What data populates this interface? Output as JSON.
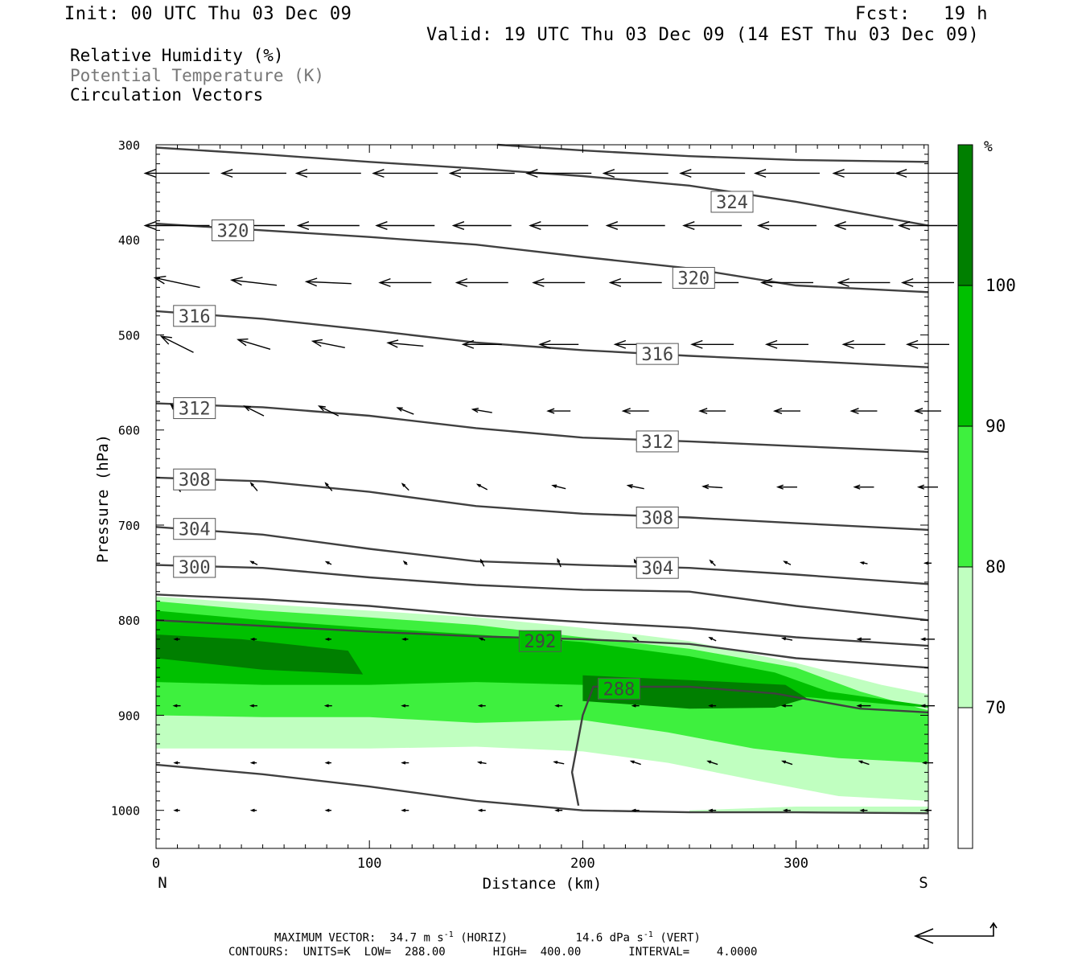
{
  "header": {
    "init": "Init: 00 UTC Thu 03 Dec 09",
    "fcst": "Fcst:   19 h",
    "valid": "Valid: 19 UTC Thu 03 Dec 09 (14 EST Thu 03 Dec 09)"
  },
  "fields": {
    "rh": "Relative Humidity (%)",
    "theta": "Potential Temperature (K)",
    "vectors": "Circulation Vectors"
  },
  "footer": {
    "max_vector_label": "MAXIMUM VECTOR:",
    "horiz_value": "34.7 m s",
    "horiz_exp": "-1",
    "horiz_tag": "(HORIZ)",
    "vert_value": "14.6 dPa s",
    "vert_exp": "-1",
    "vert_tag": "(VERT)",
    "contours": "CONTOURS:  UNITS=K  LOW=  288.00       HIGH=  400.00       INTERVAL=    4.0000"
  },
  "colors": {
    "rh_70_80": "#c0ffc0",
    "rh_80_90": "#3ef03e",
    "rh_90_100": "#00c000",
    "rh_100": "#007f00",
    "contour": "#404040",
    "vector": "#000000"
  },
  "chart_data": {
    "type": "cross-section",
    "xlabel": "Distance (km)",
    "ylabel": "Pressure (hPa)",
    "xlim": [
      0,
      362
    ],
    "ylim": [
      1040,
      300
    ],
    "x_ticks": [
      0,
      100,
      200,
      300
    ],
    "y_ticks": [
      300,
      400,
      500,
      600,
      700,
      800,
      900,
      1000
    ],
    "x_end_labels": {
      "left": "N",
      "right": "S"
    },
    "colorbar": {
      "unit": "%",
      "ticks": [
        70,
        80,
        90,
        100
      ],
      "levels": [
        60,
        70,
        80,
        90,
        100,
        110
      ]
    },
    "rh_regions": [
      {
        "level": 70,
        "upper": [
          [
            0,
            775
          ],
          [
            50,
            783
          ],
          [
            100,
            790
          ],
          [
            150,
            797
          ],
          [
            200,
            808
          ],
          [
            250,
            822
          ],
          [
            300,
            845
          ],
          [
            340,
            868
          ],
          [
            362,
            878
          ]
        ],
        "lower": [
          [
            362,
            990
          ],
          [
            320,
            985
          ],
          [
            280,
            968
          ],
          [
            240,
            950
          ],
          [
            200,
            938
          ],
          [
            150,
            933
          ],
          [
            100,
            935
          ],
          [
            50,
            935
          ],
          [
            0,
            935
          ]
        ]
      },
      {
        "level": 80,
        "upper": [
          [
            0,
            780
          ],
          [
            50,
            790
          ],
          [
            100,
            797
          ],
          [
            150,
            805
          ],
          [
            200,
            818
          ],
          [
            250,
            830
          ],
          [
            300,
            850
          ],
          [
            330,
            875
          ],
          [
            362,
            895
          ]
        ],
        "lower": [
          [
            362,
            950
          ],
          [
            320,
            945
          ],
          [
            280,
            935
          ],
          [
            240,
            918
          ],
          [
            200,
            905
          ],
          [
            150,
            908
          ],
          [
            100,
            902
          ],
          [
            50,
            902
          ],
          [
            0,
            900
          ]
        ]
      },
      {
        "level": 90,
        "upper": [
          [
            0,
            790
          ],
          [
            50,
            800
          ],
          [
            100,
            808
          ],
          [
            150,
            815
          ],
          [
            200,
            823
          ],
          [
            250,
            838
          ],
          [
            290,
            855
          ],
          [
            315,
            875
          ],
          [
            362,
            890
          ]
        ],
        "lower": [
          [
            362,
            892
          ],
          [
            300,
            880
          ],
          [
            250,
            878
          ],
          [
            200,
            868
          ],
          [
            150,
            865
          ],
          [
            100,
            868
          ],
          [
            50,
            868
          ],
          [
            0,
            865
          ]
        ]
      },
      {
        "level": 100,
        "upper": [
          [
            0,
            815
          ],
          [
            40,
            820
          ],
          [
            90,
            832
          ],
          [
            97,
            857
          ]
        ],
        "lower": [
          [
            97,
            857
          ],
          [
            50,
            852
          ],
          [
            0,
            840
          ]
        ]
      },
      {
        "level": 100,
        "upper": [
          [
            200,
            858
          ],
          [
            250,
            863
          ],
          [
            295,
            868
          ],
          [
            305,
            882
          ],
          [
            290,
            892
          ]
        ],
        "lower": [
          [
            290,
            892
          ],
          [
            250,
            893
          ],
          [
            200,
            885
          ]
        ]
      },
      {
        "level": 70,
        "upper": [
          [
            250,
            1000
          ],
          [
            300,
            996
          ],
          [
            362,
            996
          ]
        ],
        "lower": [
          [
            362,
            1002
          ],
          [
            300,
            1003
          ],
          [
            250,
            1002
          ]
        ]
      }
    ],
    "theta_contours": [
      {
        "value": 324,
        "points": [
          [
            0,
            303
          ],
          [
            50,
            310
          ],
          [
            100,
            318
          ],
          [
            150,
            325
          ],
          [
            200,
            333
          ],
          [
            250,
            343
          ],
          [
            300,
            360
          ],
          [
            362,
            385
          ]
        ]
      },
      {
        "value": 328,
        "points": [
          [
            160,
            300
          ],
          [
            200,
            306
          ],
          [
            250,
            312
          ],
          [
            300,
            316
          ],
          [
            362,
            318
          ]
        ]
      },
      {
        "value": 320,
        "points": [
          [
            0,
            383
          ],
          [
            50,
            390
          ],
          [
            100,
            397
          ],
          [
            150,
            405
          ],
          [
            200,
            418
          ],
          [
            250,
            430
          ],
          [
            300,
            448
          ],
          [
            362,
            455
          ]
        ]
      },
      {
        "value": 316,
        "points": [
          [
            0,
            475
          ],
          [
            50,
            483
          ],
          [
            100,
            495
          ],
          [
            150,
            508
          ],
          [
            200,
            516
          ],
          [
            250,
            522
          ],
          [
            300,
            527
          ],
          [
            362,
            534
          ]
        ]
      },
      {
        "value": 312,
        "points": [
          [
            0,
            572
          ],
          [
            50,
            576
          ],
          [
            100,
            585
          ],
          [
            150,
            598
          ],
          [
            200,
            608
          ],
          [
            250,
            612
          ],
          [
            300,
            617
          ],
          [
            362,
            623
          ]
        ]
      },
      {
        "value": 308,
        "points": [
          [
            0,
            650
          ],
          [
            50,
            654
          ],
          [
            100,
            665
          ],
          [
            150,
            680
          ],
          [
            200,
            688
          ],
          [
            250,
            692
          ],
          [
            300,
            698
          ],
          [
            362,
            705
          ]
        ]
      },
      {
        "value": 304,
        "points": [
          [
            0,
            702
          ],
          [
            50,
            710
          ],
          [
            100,
            725
          ],
          [
            150,
            738
          ],
          [
            200,
            742
          ],
          [
            250,
            745
          ],
          [
            300,
            752
          ],
          [
            362,
            762
          ]
        ]
      },
      {
        "value": 300,
        "points": [
          [
            0,
            742
          ],
          [
            50,
            745
          ],
          [
            100,
            755
          ],
          [
            150,
            763
          ],
          [
            200,
            768
          ],
          [
            250,
            770
          ],
          [
            300,
            785
          ],
          [
            362,
            800
          ]
        ]
      },
      {
        "value": 296,
        "points": [
          [
            0,
            773
          ],
          [
            50,
            778
          ],
          [
            100,
            785
          ],
          [
            150,
            795
          ],
          [
            200,
            802
          ],
          [
            250,
            808
          ],
          [
            300,
            818
          ],
          [
            362,
            827
          ]
        ]
      },
      {
        "value": 292,
        "points": [
          [
            0,
            800
          ],
          [
            50,
            806
          ],
          [
            100,
            812
          ],
          [
            150,
            817
          ],
          [
            200,
            820
          ],
          [
            250,
            825
          ],
          [
            300,
            840
          ],
          [
            362,
            850
          ]
        ]
      },
      {
        "value": 288,
        "points": [
          [
            198,
            995
          ],
          [
            195,
            960
          ],
          [
            200,
            900
          ],
          [
            205,
            870
          ],
          [
            250,
            870
          ],
          [
            290,
            877
          ],
          [
            330,
            893
          ],
          [
            362,
            897
          ]
        ]
      },
      {
        "value": 284,
        "points": [
          [
            0,
            952
          ],
          [
            50,
            962
          ],
          [
            100,
            975
          ],
          [
            150,
            990
          ],
          [
            200,
            1000
          ],
          [
            250,
            1002
          ],
          [
            300,
            1002
          ],
          [
            362,
            1003
          ]
        ]
      }
    ],
    "theta_labels": [
      {
        "text": "324",
        "x": 270,
        "p": 360
      },
      {
        "text": "320",
        "x": 36,
        "p": 390
      },
      {
        "text": "320",
        "x": 252,
        "p": 440
      },
      {
        "text": "316",
        "x": 18,
        "p": 480
      },
      {
        "text": "316",
        "x": 235,
        "p": 520
      },
      {
        "text": "312",
        "x": 18,
        "p": 577
      },
      {
        "text": "312",
        "x": 235,
        "p": 612
      },
      {
        "text": "308",
        "x": 18,
        "p": 652
      },
      {
        "text": "308",
        "x": 235,
        "p": 692
      },
      {
        "text": "304",
        "x": 18,
        "p": 704
      },
      {
        "text": "304",
        "x": 235,
        "p": 745
      },
      {
        "text": "300",
        "x": 18,
        "p": 744
      },
      {
        "text": "292",
        "x": 180,
        "p": 822
      },
      {
        "text": "288",
        "x": 217,
        "p": 872
      }
    ],
    "vectors": {
      "x": [
        10,
        46,
        81,
        117,
        153,
        189,
        225,
        261,
        296,
        332,
        362
      ],
      "p": [
        330,
        385,
        445,
        510,
        580,
        660,
        740,
        820,
        890,
        950,
        1000
      ],
      "u": [
        [
          -1.0,
          -1.0,
          -1.0,
          -1.0,
          -1.0,
          -1.0,
          -1.0,
          -1.0,
          -1.0,
          -0.95,
          -1.0
        ],
        [
          -1.0,
          -0.95,
          -0.95,
          -0.9,
          -0.9,
          -0.9,
          -0.9,
          -0.9,
          -0.9,
          -0.9,
          -0.9
        ],
        [
          -0.7,
          -0.7,
          -0.7,
          -0.8,
          -0.8,
          -0.8,
          -0.8,
          -0.8,
          -0.8,
          -0.8,
          -0.8
        ],
        [
          -0.5,
          -0.5,
          -0.5,
          -0.55,
          -0.6,
          -0.6,
          -0.65,
          -0.65,
          -0.65,
          -0.65,
          -0.65
        ],
        [
          -0.2,
          -0.3,
          -0.3,
          -0.25,
          -0.3,
          -0.35,
          -0.4,
          -0.4,
          -0.4,
          -0.4,
          -0.4
        ],
        [
          -0.1,
          -0.1,
          -0.1,
          -0.1,
          -0.15,
          -0.2,
          -0.25,
          -0.3,
          -0.3,
          -0.3,
          -0.3
        ],
        [
          -0.1,
          -0.1,
          -0.08,
          -0.05,
          -0.05,
          -0.05,
          -0.05,
          -0.08,
          -0.1,
          -0.1,
          -0.1
        ],
        [
          -0.08,
          -0.08,
          -0.08,
          -0.08,
          -0.08,
          -0.08,
          -0.08,
          -0.1,
          -0.15,
          -0.2,
          -0.2
        ],
        [
          -0.1,
          -0.1,
          -0.1,
          -0.1,
          -0.1,
          -0.1,
          -0.1,
          -0.1,
          -0.15,
          -0.2,
          -0.2
        ],
        [
          -0.08,
          -0.08,
          -0.08,
          -0.1,
          -0.12,
          -0.15,
          -0.15,
          -0.15,
          -0.15,
          -0.15,
          -0.15
        ],
        [
          -0.08,
          -0.08,
          -0.08,
          -0.1,
          -0.1,
          -0.1,
          -0.1,
          -0.1,
          -0.1,
          -0.1,
          -0.1
        ]
      ],
      "w": [
        [
          0,
          0,
          0,
          0,
          0,
          0,
          0,
          0,
          0,
          0,
          0
        ],
        [
          0,
          0,
          0,
          0,
          0,
          0,
          0,
          0,
          0,
          0,
          0
        ],
        [
          0.15,
          0.08,
          0.03,
          0,
          0,
          0,
          0,
          0,
          0,
          0,
          0
        ],
        [
          0.25,
          0.15,
          0.1,
          0.05,
          0,
          0,
          0,
          0,
          0,
          0,
          0
        ],
        [
          0.2,
          0.15,
          0.15,
          0.1,
          0.05,
          0,
          0,
          0,
          0,
          0,
          0
        ],
        [
          0.15,
          0.12,
          0.12,
          0.1,
          0.08,
          0.05,
          0.05,
          0.02,
          0,
          0,
          0
        ],
        [
          0.15,
          0.05,
          0.04,
          0.05,
          0.1,
          0.12,
          0.1,
          0.08,
          0.05,
          0.02,
          0
        ],
        [
          0,
          0,
          0,
          0,
          0.03,
          0.05,
          0.05,
          0.05,
          0.03,
          0,
          0
        ],
        [
          0,
          0,
          0,
          0,
          0,
          0,
          0,
          0,
          0,
          0,
          0
        ],
        [
          0,
          0,
          0,
          0,
          0.02,
          0.03,
          0.05,
          0.05,
          0.05,
          0.05,
          0
        ],
        [
          0,
          0,
          0,
          0,
          0,
          0,
          0,
          0,
          0,
          0,
          0
        ]
      ]
    }
  }
}
